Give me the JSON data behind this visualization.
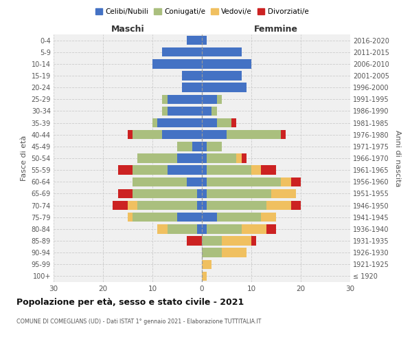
{
  "age_groups": [
    "100+",
    "95-99",
    "90-94",
    "85-89",
    "80-84",
    "75-79",
    "70-74",
    "65-69",
    "60-64",
    "55-59",
    "50-54",
    "45-49",
    "40-44",
    "35-39",
    "30-34",
    "25-29",
    "20-24",
    "15-19",
    "10-14",
    "5-9",
    "0-4"
  ],
  "birth_years": [
    "≤ 1920",
    "1921-1925",
    "1926-1930",
    "1931-1935",
    "1936-1940",
    "1941-1945",
    "1946-1950",
    "1951-1955",
    "1956-1960",
    "1961-1965",
    "1966-1970",
    "1971-1975",
    "1976-1980",
    "1981-1985",
    "1986-1990",
    "1991-1995",
    "1996-2000",
    "2001-2005",
    "2006-2010",
    "2011-2015",
    "2016-2020"
  ],
  "colors": {
    "celibi": "#4472C4",
    "coniugati": "#AABF7E",
    "vedovi": "#F0C060",
    "divorziati": "#CC2222"
  },
  "maschi": {
    "celibi": [
      0,
      0,
      0,
      0,
      1,
      5,
      1,
      1,
      3,
      7,
      5,
      2,
      8,
      9,
      7,
      7,
      4,
      4,
      10,
      8,
      3
    ],
    "coniugati": [
      0,
      0,
      0,
      0,
      6,
      9,
      12,
      13,
      11,
      7,
      8,
      3,
      6,
      1,
      1,
      1,
      0,
      0,
      0,
      0,
      0
    ],
    "vedovi": [
      0,
      0,
      0,
      0,
      2,
      1,
      2,
      0,
      0,
      0,
      0,
      0,
      0,
      0,
      0,
      0,
      0,
      0,
      0,
      0,
      0
    ],
    "divorziati": [
      0,
      0,
      0,
      3,
      0,
      0,
      3,
      3,
      0,
      3,
      0,
      0,
      1,
      0,
      0,
      0,
      0,
      0,
      0,
      0,
      0
    ]
  },
  "femmine": {
    "celibi": [
      0,
      0,
      0,
      0,
      1,
      3,
      1,
      1,
      1,
      1,
      1,
      1,
      5,
      3,
      2,
      3,
      9,
      8,
      10,
      8,
      1
    ],
    "coniugati": [
      0,
      0,
      4,
      4,
      7,
      9,
      12,
      13,
      15,
      9,
      6,
      3,
      11,
      3,
      1,
      1,
      0,
      0,
      0,
      0,
      0
    ],
    "vedovi": [
      1,
      2,
      5,
      6,
      5,
      3,
      5,
      5,
      2,
      2,
      1,
      0,
      0,
      0,
      0,
      0,
      0,
      0,
      0,
      0,
      0
    ],
    "divorziati": [
      0,
      0,
      0,
      1,
      2,
      0,
      2,
      0,
      2,
      3,
      1,
      0,
      1,
      1,
      0,
      0,
      0,
      0,
      0,
      0,
      0
    ]
  },
  "xlim": 30,
  "title": "Popolazione per età, sesso e stato civile - 2021",
  "subtitle": "COMUNE DI COMEGLIANS (UD) - Dati ISTAT 1° gennaio 2021 - Elaborazione TUTTITALIA.IT",
  "ylabel_left": "Fasce di età",
  "ylabel_right": "Anni di nascita",
  "xlabel_maschi": "Maschi",
  "xlabel_femmine": "Femmine",
  "legend_labels": [
    "Celibi/Nubili",
    "Coniugati/e",
    "Vedovi/e",
    "Divorziati/e"
  ],
  "background_color": "#f0f0f0"
}
